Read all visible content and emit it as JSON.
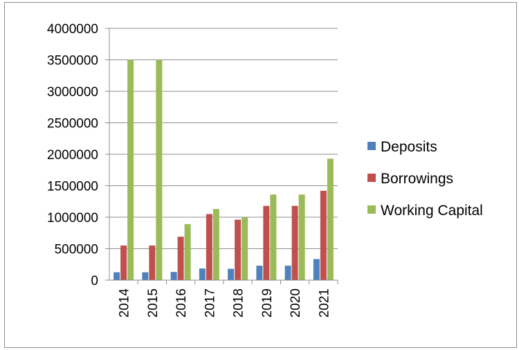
{
  "chart_data": {
    "type": "bar",
    "categories": [
      "2014",
      "2015",
      "2016",
      "2017",
      "2018",
      "2019",
      "2020",
      "2021"
    ],
    "series": [
      {
        "name": "Deposits",
        "color": "#4f81bd",
        "values": [
          125000,
          125000,
          130000,
          185000,
          180000,
          230000,
          230000,
          335000
        ]
      },
      {
        "name": "Borrowings",
        "color": "#c0504d",
        "values": [
          550000,
          550000,
          690000,
          1050000,
          960000,
          1180000,
          1180000,
          1420000
        ]
      },
      {
        "name": "Working Capital",
        "color": "#9bbb59",
        "values": [
          3500000,
          3500000,
          890000,
          1130000,
          1000000,
          1360000,
          1360000,
          1930000
        ]
      }
    ],
    "yticks": [
      "0",
      "500000",
      "1000000",
      "1500000",
      "2000000",
      "2500000",
      "3000000",
      "3500000",
      "4000000"
    ],
    "ylim": [
      0,
      4000000
    ],
    "grid": true,
    "legend": "right",
    "title": "",
    "xlabel": "",
    "ylabel": ""
  }
}
